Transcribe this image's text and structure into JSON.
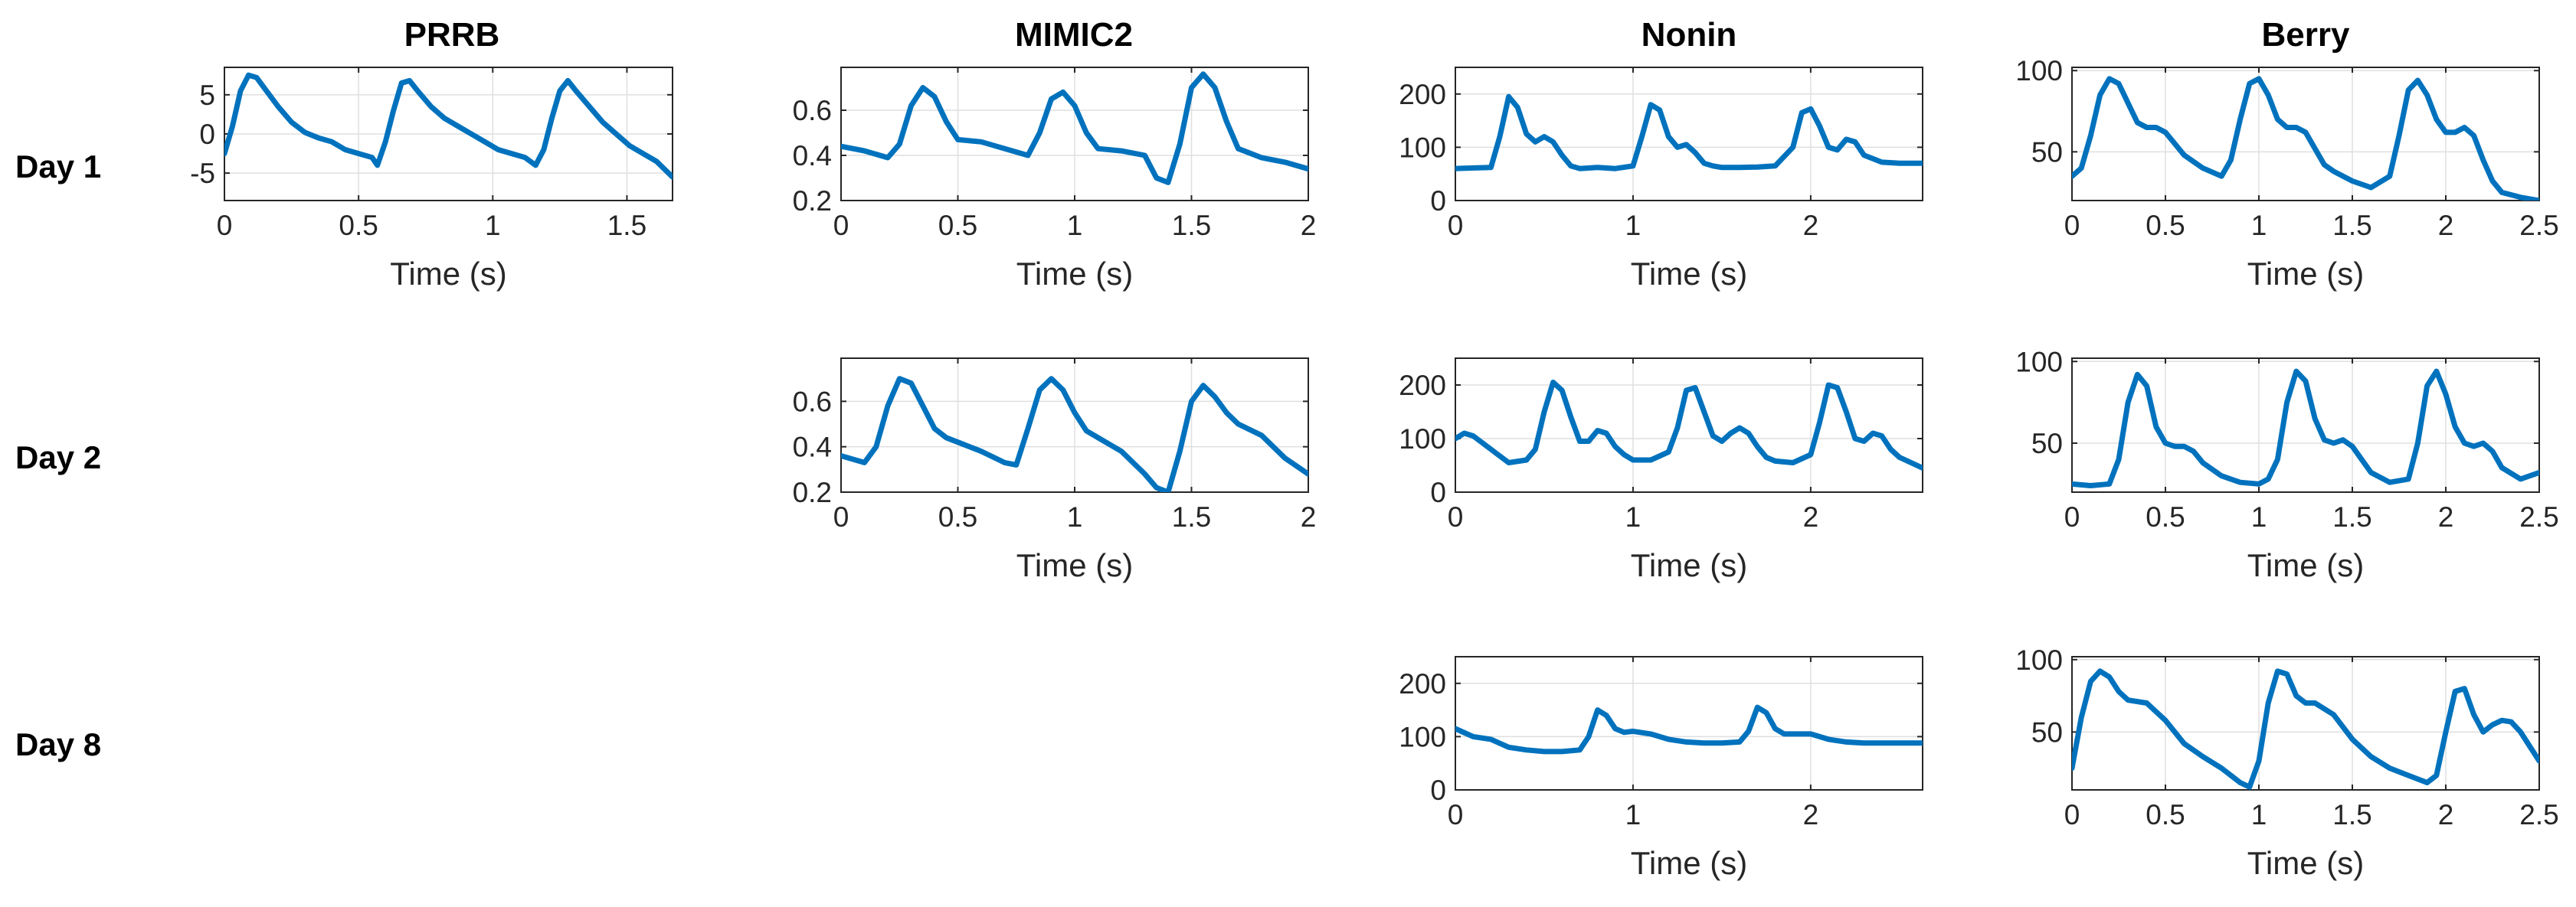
{
  "figure": {
    "columns": [
      "PRRB",
      "MIMIC2",
      "Nonin",
      "Berry"
    ],
    "rows": [
      "Day 1",
      "Day 2",
      "Day 8"
    ]
  },
  "style": {
    "line_color": "#0072BD",
    "grid_color": "#dfdfdf",
    "axis_color": "#262626"
  },
  "chart_data": [
    {
      "type": "line",
      "id": "PRRB-Day1",
      "title": "PRRB",
      "row": "Day 1",
      "xlabel": "Time (s)",
      "ylabel": "",
      "xlim": [
        0,
        1.67
      ],
      "ylim": [
        -8.5,
        8.5
      ],
      "xticks": [
        0,
        0.5,
        1,
        1.5
      ],
      "xticklabels": [
        "0",
        "0.5",
        "1",
        "1.5"
      ],
      "yticks": [
        -5,
        0,
        5
      ],
      "yticklabels": [
        "-5",
        "0",
        "5"
      ],
      "x": [
        0,
        0.03,
        0.06,
        0.09,
        0.12,
        0.15,
        0.2,
        0.25,
        0.3,
        0.35,
        0.4,
        0.45,
        0.5,
        0.55,
        0.57,
        0.6,
        0.63,
        0.66,
        0.69,
        0.72,
        0.77,
        0.82,
        0.87,
        0.92,
        0.97,
        1.02,
        1.07,
        1.12,
        1.16,
        1.19,
        1.22,
        1.25,
        1.28,
        1.31,
        1.36,
        1.41,
        1.46,
        1.51,
        1.56,
        1.61,
        1.67
      ],
      "y": [
        -2.5,
        1.0,
        5.5,
        7.5,
        7.2,
        5.8,
        3.5,
        1.5,
        0.2,
        -0.5,
        -1.0,
        -2.0,
        -2.5,
        -3.0,
        -4.0,
        -1.0,
        3.0,
        6.5,
        6.8,
        5.5,
        3.5,
        2.0,
        1.0,
        0.0,
        -1.0,
        -2.0,
        -2.5,
        -3.0,
        -4.0,
        -2.0,
        2.0,
        5.5,
        6.8,
        5.5,
        3.5,
        1.5,
        0.0,
        -1.5,
        -2.5,
        -3.5,
        -5.5
      ]
    },
    {
      "type": "line",
      "id": "MIMIC2-Day1",
      "title": "MIMIC2",
      "row": "Day 1",
      "xlabel": "Time (s)",
      "ylabel": "",
      "xlim": [
        0,
        2
      ],
      "ylim": [
        0.2,
        0.79
      ],
      "xticks": [
        0,
        0.5,
        1,
        1.5,
        2
      ],
      "xticklabels": [
        "0",
        "0.5",
        "1",
        "1.5",
        "2"
      ],
      "yticks": [
        0.2,
        0.4,
        0.6
      ],
      "yticklabels": [
        "0.2",
        "0.4",
        "0.6"
      ],
      "x": [
        0,
        0.1,
        0.2,
        0.25,
        0.3,
        0.35,
        0.4,
        0.45,
        0.5,
        0.6,
        0.7,
        0.8,
        0.85,
        0.9,
        0.95,
        1.0,
        1.05,
        1.1,
        1.2,
        1.3,
        1.35,
        1.4,
        1.45,
        1.5,
        1.55,
        1.6,
        1.65,
        1.7,
        1.8,
        1.9,
        2.0
      ],
      "y": [
        0.44,
        0.42,
        0.39,
        0.45,
        0.62,
        0.7,
        0.66,
        0.55,
        0.47,
        0.46,
        0.43,
        0.4,
        0.5,
        0.65,
        0.68,
        0.62,
        0.5,
        0.43,
        0.42,
        0.4,
        0.3,
        0.28,
        0.45,
        0.7,
        0.76,
        0.7,
        0.55,
        0.43,
        0.39,
        0.37,
        0.34
      ]
    },
    {
      "type": "line",
      "id": "Nonin-Day1",
      "title": "Nonin",
      "row": "Day 1",
      "xlabel": "Time (s)",
      "ylabel": "",
      "xlim": [
        0,
        2.63
      ],
      "ylim": [
        0,
        250
      ],
      "xticks": [
        0,
        1,
        2
      ],
      "xticklabels": [
        "0",
        "1",
        "2"
      ],
      "yticks": [
        0,
        100,
        200
      ],
      "yticklabels": [
        "0",
        "100",
        "200"
      ],
      "x": [
        0,
        0.2,
        0.25,
        0.3,
        0.35,
        0.4,
        0.45,
        0.5,
        0.55,
        0.6,
        0.65,
        0.7,
        0.8,
        0.9,
        1.0,
        1.05,
        1.1,
        1.15,
        1.2,
        1.25,
        1.3,
        1.35,
        1.4,
        1.45,
        1.5,
        1.6,
        1.7,
        1.8,
        1.9,
        1.95,
        2.0,
        2.05,
        2.1,
        2.15,
        2.2,
        2.25,
        2.3,
        2.4,
        2.5,
        2.63
      ],
      "y": [
        60,
        62,
        120,
        195,
        175,
        125,
        110,
        120,
        110,
        85,
        65,
        60,
        62,
        60,
        65,
        120,
        180,
        170,
        120,
        100,
        105,
        90,
        70,
        65,
        62,
        62,
        63,
        65,
        100,
        165,
        172,
        140,
        100,
        95,
        115,
        110,
        85,
        72,
        70,
        70
      ]
    },
    {
      "type": "line",
      "id": "Berry-Day1",
      "title": "Berry",
      "row": "Day 1",
      "xlabel": "Time (s)",
      "ylabel": "",
      "xlim": [
        0,
        2.5
      ],
      "ylim": [
        20,
        102
      ],
      "xticks": [
        0,
        0.5,
        1,
        1.5,
        2,
        2.5
      ],
      "xticklabels": [
        "0",
        "0.5",
        "1",
        "1.5",
        "2",
        "2.5"
      ],
      "yticks": [
        50,
        100
      ],
      "yticklabels": [
        "50",
        "100"
      ],
      "x": [
        0,
        0.05,
        0.1,
        0.15,
        0.2,
        0.25,
        0.3,
        0.35,
        0.4,
        0.45,
        0.5,
        0.55,
        0.6,
        0.7,
        0.8,
        0.85,
        0.9,
        0.95,
        1.0,
        1.05,
        1.1,
        1.15,
        1.2,
        1.25,
        1.3,
        1.35,
        1.4,
        1.5,
        1.6,
        1.7,
        1.75,
        1.8,
        1.85,
        1.9,
        1.95,
        2.0,
        2.05,
        2.1,
        2.15,
        2.2,
        2.25,
        2.3,
        2.4,
        2.5
      ],
      "y": [
        35,
        40,
        60,
        85,
        95,
        92,
        80,
        68,
        65,
        65,
        62,
        55,
        48,
        40,
        35,
        45,
        70,
        92,
        95,
        85,
        70,
        65,
        65,
        62,
        52,
        42,
        38,
        32,
        28,
        35,
        60,
        88,
        94,
        85,
        70,
        62,
        62,
        65,
        60,
        45,
        32,
        25,
        22,
        20
      ]
    },
    {
      "type": "line",
      "id": "MIMIC2-Day2",
      "title": "MIMIC2",
      "row": "Day 2",
      "xlabel": "Time (s)",
      "ylabel": "",
      "xlim": [
        0,
        2
      ],
      "ylim": [
        0.2,
        0.79
      ],
      "xticks": [
        0,
        0.5,
        1,
        1.5,
        2
      ],
      "xticklabels": [
        "0",
        "0.5",
        "1",
        "1.5",
        "2"
      ],
      "yticks": [
        0.2,
        0.4,
        0.6
      ],
      "yticklabels": [
        "0.2",
        "0.4",
        "0.6"
      ],
      "x": [
        0,
        0.1,
        0.15,
        0.2,
        0.25,
        0.3,
        0.35,
        0.4,
        0.45,
        0.5,
        0.6,
        0.7,
        0.75,
        0.8,
        0.85,
        0.9,
        0.95,
        1.0,
        1.05,
        1.1,
        1.2,
        1.3,
        1.35,
        1.4,
        1.45,
        1.5,
        1.55,
        1.6,
        1.65,
        1.7,
        1.8,
        1.9,
        2.0
      ],
      "y": [
        0.36,
        0.33,
        0.4,
        0.58,
        0.7,
        0.68,
        0.58,
        0.48,
        0.44,
        0.42,
        0.38,
        0.33,
        0.32,
        0.48,
        0.65,
        0.7,
        0.65,
        0.55,
        0.47,
        0.44,
        0.38,
        0.28,
        0.22,
        0.2,
        0.38,
        0.6,
        0.67,
        0.62,
        0.55,
        0.5,
        0.45,
        0.35,
        0.28
      ]
    },
    {
      "type": "line",
      "id": "Nonin-Day2",
      "title": "Nonin",
      "row": "Day 2",
      "xlabel": "Time (s)",
      "ylabel": "",
      "xlim": [
        0,
        2.63
      ],
      "ylim": [
        0,
        250
      ],
      "xticks": [
        0,
        1,
        2
      ],
      "xticklabels": [
        "0",
        "1",
        "2"
      ],
      "yticks": [
        0,
        100,
        200
      ],
      "yticklabels": [
        "0",
        "100",
        "200"
      ],
      "x": [
        0,
        0.05,
        0.1,
        0.2,
        0.3,
        0.4,
        0.45,
        0.5,
        0.55,
        0.6,
        0.65,
        0.7,
        0.75,
        0.8,
        0.85,
        0.9,
        0.95,
        1.0,
        1.1,
        1.2,
        1.25,
        1.3,
        1.35,
        1.4,
        1.45,
        1.5,
        1.55,
        1.6,
        1.65,
        1.7,
        1.75,
        1.8,
        1.9,
        2.0,
        2.05,
        2.1,
        2.15,
        2.2,
        2.25,
        2.3,
        2.35,
        2.4,
        2.45,
        2.5,
        2.63
      ],
      "y": [
        100,
        110,
        105,
        80,
        55,
        60,
        80,
        150,
        205,
        190,
        140,
        95,
        95,
        115,
        110,
        85,
        70,
        60,
        60,
        75,
        120,
        190,
        195,
        150,
        105,
        95,
        110,
        120,
        110,
        85,
        65,
        58,
        55,
        70,
        130,
        200,
        195,
        150,
        100,
        95,
        110,
        105,
        80,
        65,
        45
      ]
    },
    {
      "type": "line",
      "id": "Berry-Day2",
      "title": "Berry",
      "row": "Day 2",
      "xlabel": "Time (s)",
      "ylabel": "",
      "xlim": [
        0,
        2.5
      ],
      "ylim": [
        20,
        102
      ],
      "xticks": [
        0,
        0.5,
        1,
        1.5,
        2,
        2.5
      ],
      "xticklabels": [
        "0",
        "0.5",
        "1",
        "1.5",
        "2",
        "2.5"
      ],
      "yticks": [
        50,
        100
      ],
      "yticklabels": [
        "50",
        "100"
      ],
      "x": [
        0,
        0.1,
        0.2,
        0.25,
        0.3,
        0.35,
        0.4,
        0.45,
        0.5,
        0.55,
        0.6,
        0.65,
        0.7,
        0.8,
        0.9,
        1.0,
        1.05,
        1.1,
        1.15,
        1.2,
        1.25,
        1.3,
        1.35,
        1.4,
        1.45,
        1.5,
        1.55,
        1.6,
        1.7,
        1.8,
        1.85,
        1.9,
        1.95,
        2.0,
        2.05,
        2.1,
        2.15,
        2.2,
        2.25,
        2.3,
        2.4,
        2.5
      ],
      "y": [
        25,
        24,
        25,
        40,
        75,
        92,
        85,
        60,
        50,
        48,
        48,
        45,
        38,
        30,
        26,
        25,
        28,
        40,
        75,
        94,
        88,
        65,
        52,
        50,
        52,
        48,
        40,
        32,
        26,
        28,
        50,
        85,
        94,
        80,
        60,
        50,
        48,
        50,
        45,
        35,
        28,
        32
      ]
    },
    {
      "type": "line",
      "id": "Nonin-Day8",
      "title": "Nonin",
      "row": "Day 8",
      "xlabel": "Time (s)",
      "ylabel": "",
      "xlim": [
        0,
        2.63
      ],
      "ylim": [
        0,
        250
      ],
      "xticks": [
        0,
        1,
        2
      ],
      "xticklabels": [
        "0",
        "1",
        "2"
      ],
      "yticks": [
        0,
        100,
        200
      ],
      "yticklabels": [
        "0",
        "100",
        "200"
      ],
      "x": [
        0,
        0.1,
        0.2,
        0.3,
        0.4,
        0.5,
        0.6,
        0.7,
        0.75,
        0.8,
        0.85,
        0.9,
        0.95,
        1.0,
        1.1,
        1.2,
        1.3,
        1.4,
        1.5,
        1.6,
        1.65,
        1.7,
        1.75,
        1.8,
        1.85,
        1.9,
        2.0,
        2.1,
        2.2,
        2.3,
        2.4,
        2.5,
        2.63
      ],
      "y": [
        115,
        100,
        95,
        80,
        75,
        72,
        72,
        75,
        100,
        150,
        140,
        115,
        108,
        110,
        105,
        95,
        90,
        88,
        88,
        90,
        110,
        155,
        145,
        115,
        105,
        105,
        105,
        95,
        90,
        88,
        88,
        88,
        88
      ]
    },
    {
      "type": "line",
      "id": "Berry-Day8",
      "title": "Berry",
      "row": "Day 8",
      "xlabel": "Time (s)",
      "ylabel": "",
      "xlim": [
        0,
        2.5
      ],
      "ylim": [
        10,
        102
      ],
      "xticks": [
        0,
        0.5,
        1,
        1.5,
        2,
        2.5
      ],
      "xticklabels": [
        "0",
        "0.5",
        "1",
        "1.5",
        "2",
        "2.5"
      ],
      "yticks": [
        50,
        100
      ],
      "yticklabels": [
        "50",
        "100"
      ],
      "x": [
        0,
        0.05,
        0.1,
        0.15,
        0.2,
        0.25,
        0.3,
        0.4,
        0.5,
        0.6,
        0.7,
        0.8,
        0.9,
        0.95,
        1.0,
        1.05,
        1.1,
        1.15,
        1.2,
        1.25,
        1.3,
        1.4,
        1.5,
        1.6,
        1.7,
        1.8,
        1.9,
        1.95,
        2.0,
        2.05,
        2.1,
        2.15,
        2.2,
        2.25,
        2.3,
        2.35,
        2.4,
        2.45,
        2.5
      ],
      "y": [
        25,
        60,
        85,
        92,
        88,
        78,
        72,
        70,
        58,
        42,
        33,
        25,
        15,
        12,
        30,
        70,
        92,
        90,
        75,
        70,
        70,
        62,
        45,
        33,
        25,
        20,
        15,
        20,
        50,
        78,
        80,
        62,
        50,
        55,
        58,
        57,
        50,
        40,
        30
      ]
    }
  ]
}
